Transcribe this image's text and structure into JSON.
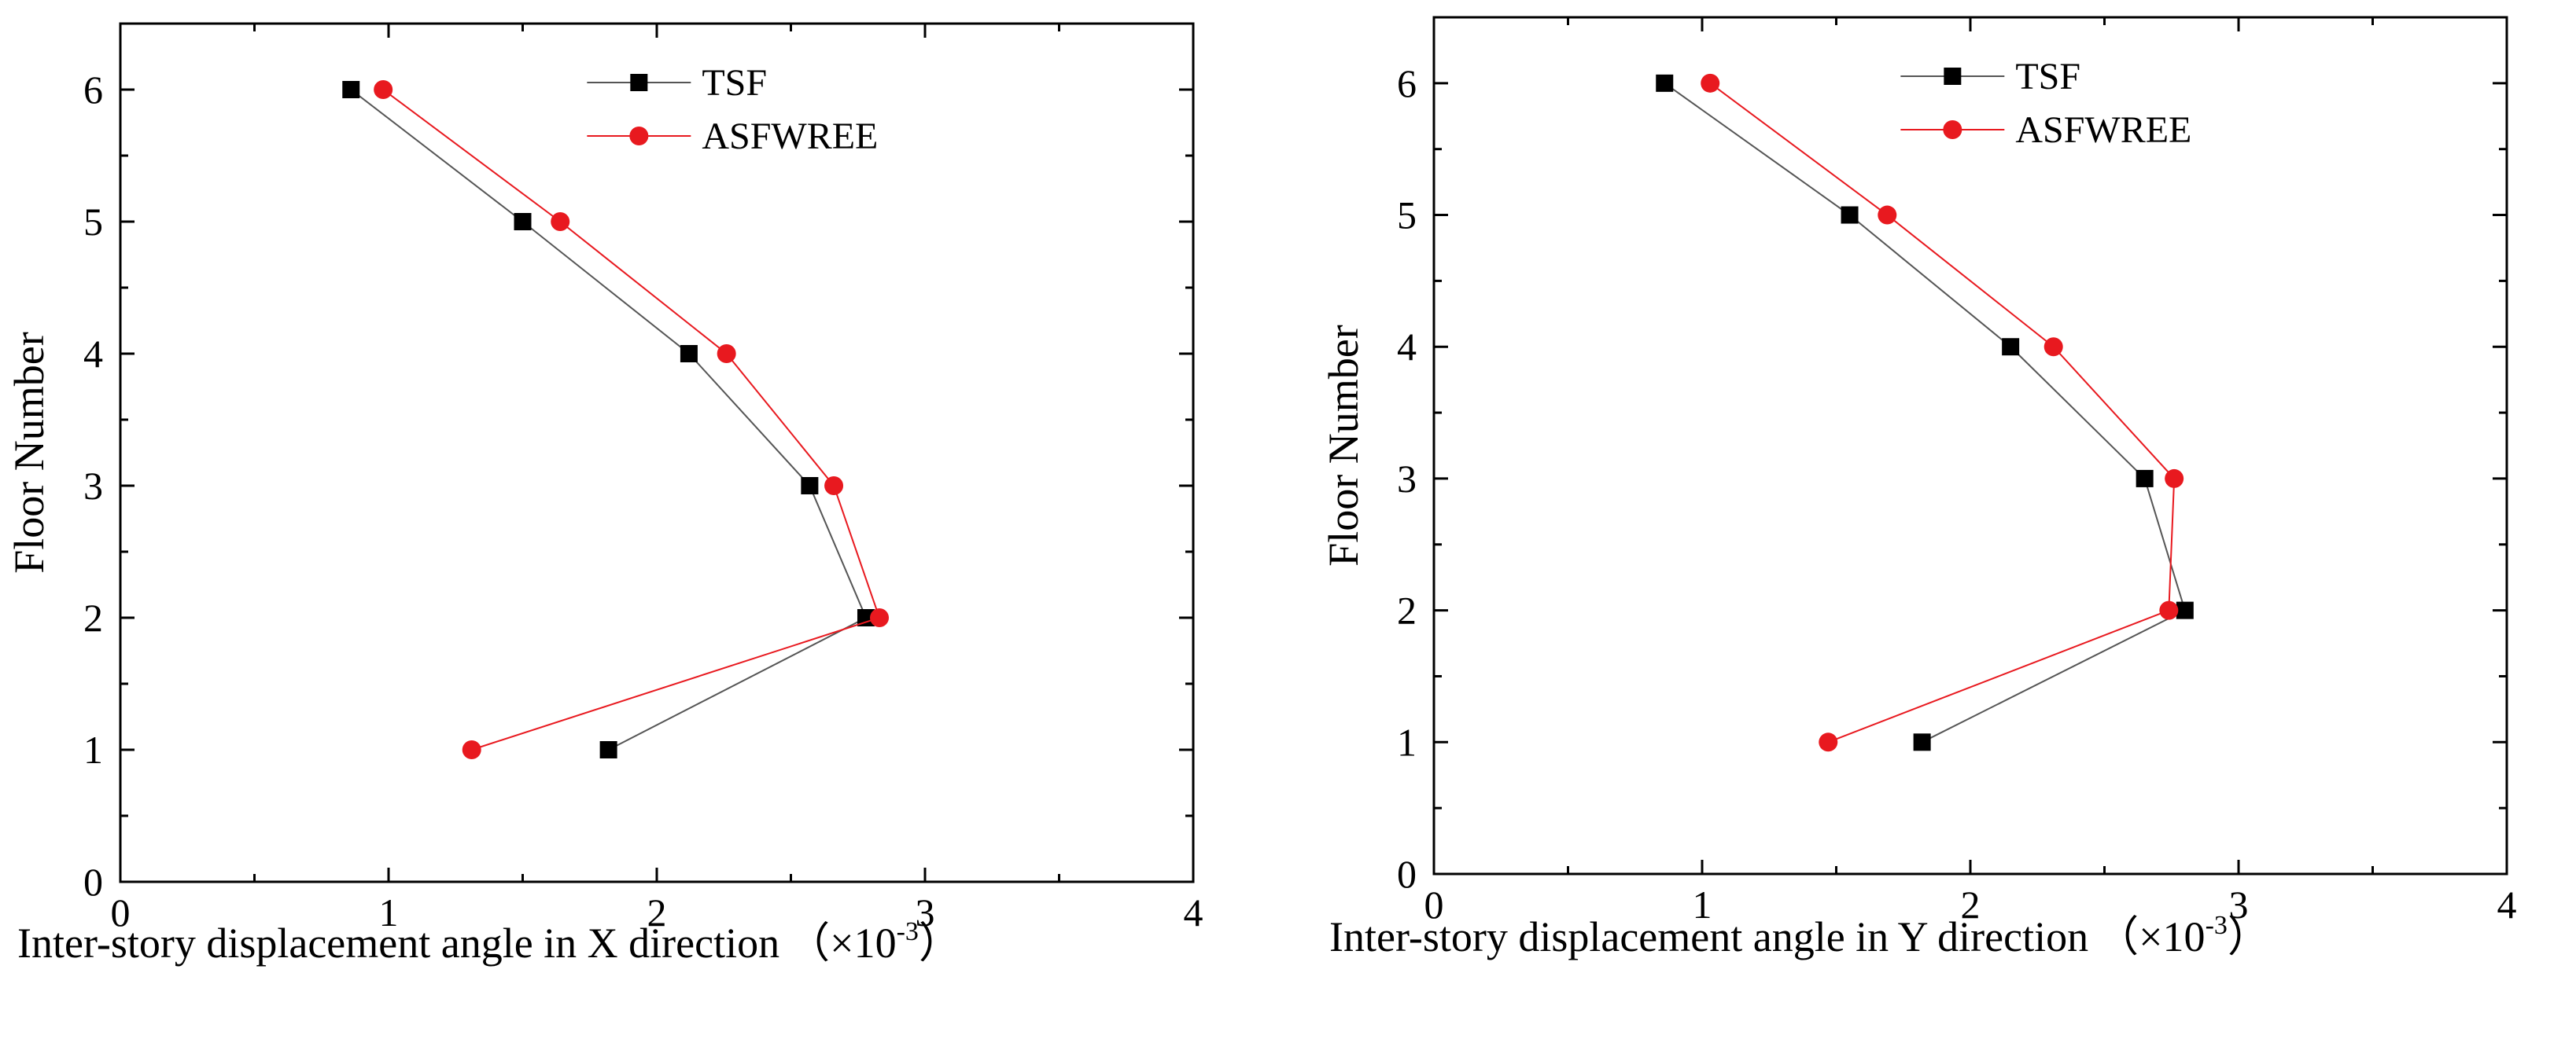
{
  "colors": {
    "tsf": "#000000",
    "asfwree": "#e8191f",
    "tsf_line": "#555555",
    "asfwree_line": "#e8191f",
    "axis": "#000000"
  },
  "chart_data": [
    {
      "type": "line",
      "title": "",
      "xlabel": "Inter-story displacement angle in X direction",
      "xunit": "（×10",
      "xunit_exp": "-3",
      "xunit_close": "）",
      "ylabel": "Floor Number",
      "xlim": [
        0,
        4
      ],
      "ylim": [
        0,
        6.5
      ],
      "xticks": [
        0,
        1,
        2,
        3,
        4
      ],
      "yticks": [
        0,
        1,
        2,
        3,
        4,
        5,
        6
      ],
      "grid": false,
      "legend_position": "top-center",
      "series": [
        {
          "name": "TSF",
          "marker": "square",
          "points": [
            {
              "x": 0.86,
              "y": 6
            },
            {
              "x": 1.5,
              "y": 5
            },
            {
              "x": 2.12,
              "y": 4
            },
            {
              "x": 2.57,
              "y": 3
            },
            {
              "x": 2.78,
              "y": 2
            },
            {
              "x": 1.82,
              "y": 1
            }
          ]
        },
        {
          "name": "ASFWREE",
          "marker": "circle",
          "points": [
            {
              "x": 0.98,
              "y": 6
            },
            {
              "x": 1.64,
              "y": 5
            },
            {
              "x": 2.26,
              "y": 4
            },
            {
              "x": 2.66,
              "y": 3
            },
            {
              "x": 2.83,
              "y": 2
            },
            {
              "x": 1.31,
              "y": 1
            }
          ]
        }
      ]
    },
    {
      "type": "line",
      "title": "",
      "xlabel": "Inter-story displacement angle in Y direction",
      "xunit": "（×10",
      "xunit_exp": "-3",
      "xunit_close": "）",
      "ylabel": "Floor Number",
      "xlim": [
        0,
        4
      ],
      "ylim": [
        0,
        6.5
      ],
      "xticks": [
        0,
        1,
        2,
        3,
        4
      ],
      "yticks": [
        0,
        1,
        2,
        3,
        4,
        5,
        6
      ],
      "grid": false,
      "legend_position": "top-center",
      "series": [
        {
          "name": "TSF",
          "marker": "square",
          "points": [
            {
              "x": 0.86,
              "y": 6
            },
            {
              "x": 1.55,
              "y": 5
            },
            {
              "x": 2.15,
              "y": 4
            },
            {
              "x": 2.65,
              "y": 3
            },
            {
              "x": 2.8,
              "y": 2
            },
            {
              "x": 1.82,
              "y": 1
            }
          ]
        },
        {
          "name": "ASFWREE",
          "marker": "circle",
          "points": [
            {
              "x": 1.03,
              "y": 6
            },
            {
              "x": 1.69,
              "y": 5
            },
            {
              "x": 2.31,
              "y": 4
            },
            {
              "x": 2.76,
              "y": 3
            },
            {
              "x": 2.74,
              "y": 2
            },
            {
              "x": 1.47,
              "y": 1
            }
          ]
        }
      ]
    }
  ]
}
